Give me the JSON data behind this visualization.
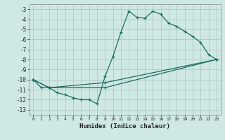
{
  "xlabel": "Humidex (Indice chaleur)",
  "background_color": "#cfe8e4",
  "grid_color": "#b0c8c4",
  "line_color": "#1a6e64",
  "xlim": [
    -0.5,
    23.5
  ],
  "ylim": [
    -13.5,
    -2.5
  ],
  "xticks": [
    0,
    1,
    2,
    3,
    4,
    5,
    6,
    7,
    8,
    9,
    10,
    11,
    12,
    13,
    14,
    15,
    16,
    17,
    18,
    19,
    20,
    21,
    22,
    23
  ],
  "yticks": [
    -13,
    -12,
    -11,
    -10,
    -9,
    -8,
    -7,
    -6,
    -5,
    -4,
    -3
  ],
  "series1_x": [
    0,
    1,
    2,
    3,
    4,
    5,
    6,
    7,
    8,
    9,
    10,
    11,
    12,
    13,
    14,
    15,
    16,
    17,
    18,
    19,
    20,
    21,
    22,
    23
  ],
  "series1_y": [
    -10,
    -10.8,
    -10.8,
    -11.3,
    -11.5,
    -11.8,
    -12,
    -12,
    -12.4,
    -9.7,
    -7.7,
    -5.3,
    -3.2,
    -3.8,
    -3.9,
    -3.2,
    -3.5,
    -4.4,
    -4.7,
    -5.2,
    -5.7,
    -6.3,
    -7.5,
    -8
  ],
  "series2_x": [
    0,
    2,
    9,
    23
  ],
  "series2_y": [
    -10,
    -10.8,
    -10.3,
    -8
  ],
  "series3_x": [
    0,
    2,
    9,
    23
  ],
  "series3_y": [
    -10,
    -10.8,
    -10.8,
    -8
  ]
}
